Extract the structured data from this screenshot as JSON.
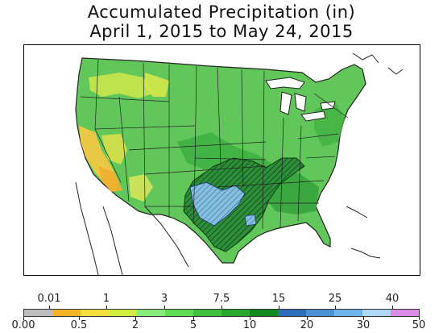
{
  "title": "Accumulated Precipitation (in)",
  "subtitle": "April 1, 2015 to May 24, 2015",
  "map": {
    "region": "Contiguous United States",
    "hatched_area_meaning": "",
    "colors": {
      "background": "#ffffff",
      "land_base": "#62c75a",
      "dry_yellow": "#f2da3c",
      "dry_orange": "#f0b030",
      "wet_dark_green": "#2e9a3b",
      "very_wet_blue": "#86bfe2",
      "borders": "#222222"
    }
  },
  "legend": {
    "swatch_colors": [
      "#bdbdbd",
      "#f5b32a",
      "#f2de3c",
      "#d0ec3c",
      "#86eb7b",
      "#5ddc56",
      "#3ec23d",
      "#25a82c",
      "#118a20",
      "#2d6fb8",
      "#4a92d6",
      "#6db2ea",
      "#aed7f5",
      "#d88ce4"
    ],
    "top_labels": [
      "0.01",
      "1",
      "3",
      "7.5",
      "15",
      "25",
      "40"
    ],
    "bottom_labels": [
      "0.00",
      "0.5",
      "2",
      "5",
      "10",
      "20",
      "30",
      "50"
    ]
  }
}
